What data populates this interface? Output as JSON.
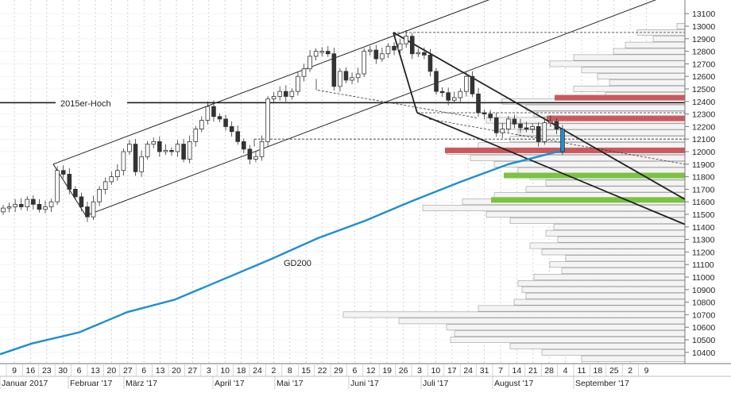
{
  "chart_data": {
    "type": "candlestick",
    "title": "",
    "y_ticks": [
      10400,
      10500,
      10600,
      10700,
      10800,
      10900,
      11000,
      11100,
      11200,
      11300,
      11400,
      11500,
      11600,
      11700,
      11800,
      11900,
      12000,
      12100,
      12200,
      12300,
      12400,
      12500,
      12600,
      12700,
      12800,
      12900,
      13000,
      13100
    ],
    "ylim": [
      10300,
      13150
    ],
    "x_day_ticks": [
      "9",
      "16",
      "23",
      "30",
      "6",
      "13",
      "20",
      "27",
      "6",
      "13",
      "20",
      "27",
      "3",
      "10",
      "18",
      "24",
      "2",
      "8",
      "15",
      "22",
      "29",
      "6",
      "12",
      "19",
      "26",
      "3",
      "10",
      "17",
      "24",
      "31",
      "7",
      "14",
      "21",
      "28",
      "4",
      "11",
      "18",
      "25",
      "2",
      "9"
    ],
    "month_labels": [
      "Januar 2017",
      "Februar '17",
      "März '17",
      "April '17",
      "Mai '17",
      "Juni '17",
      "Juli '17",
      "August '17",
      "September '17"
    ],
    "annotations": {
      "resistance_2015": "2015er-Hoch",
      "gd200": "GD200"
    },
    "levels": {
      "hline_2015": 12390,
      "june_high": 12950,
      "dashed_12100": 12100,
      "dashed_12310": 12310,
      "dashed_12070": 12070,
      "red_zones": [
        12430,
        12265,
        12010
      ],
      "green_zones": [
        11810,
        11615
      ]
    },
    "gd200": [
      [
        0,
        10385
      ],
      [
        40,
        10470
      ],
      [
        100,
        10560
      ],
      [
        160,
        10720
      ],
      [
        220,
        10820
      ],
      [
        280,
        10980
      ],
      [
        340,
        11140
      ],
      [
        400,
        11310
      ],
      [
        460,
        11450
      ],
      [
        520,
        11610
      ],
      [
        580,
        11760
      ],
      [
        640,
        11900
      ],
      [
        708,
        12010
      ]
    ],
    "up_channel": {
      "lower": [
        [
          108,
          11490
        ],
        [
          640,
          12960
        ]
      ],
      "upper": [
        [
          67,
          11900
        ],
        [
          620,
          13500
        ]
      ]
    },
    "down_channel": {
      "upper": [
        [
          495,
          12950
        ],
        [
          862,
          11620
        ]
      ],
      "lower": [
        [
          525,
          12310
        ],
        [
          862,
          11420
        ]
      ]
    },
    "volume_profile_units": "relative",
    "closes": [
      11550,
      11560,
      11580,
      11560,
      11620,
      11580,
      11540,
      11560,
      11600,
      11850,
      11820,
      11700,
      11640,
      11560,
      11480,
      11600,
      11700,
      11760,
      11800,
      11850,
      12000,
      12060,
      11840,
      11960,
      12060,
      12080,
      12000,
      12010,
      12000,
      12060,
      11940,
      12080,
      12180,
      12250,
      12360,
      12280,
      12260,
      12200,
      12160,
      12080,
      12020,
      11940,
      11960,
      12080,
      12420,
      12440,
      12480,
      12440,
      12480,
      12600,
      12660,
      12760,
      12800,
      12800,
      12780,
      12520,
      12640,
      12570,
      12590,
      12620,
      12800,
      12810,
      12740,
      12780,
      12840,
      12810,
      12860,
      12920,
      12780,
      12790,
      12770,
      12640,
      12480,
      12470,
      12410,
      12430,
      12480,
      12600,
      12460,
      12310,
      12300,
      12270,
      12150,
      12180,
      12260,
      12220,
      12190,
      12180,
      12200,
      12080,
      12230,
      12240,
      12180,
      12000
    ]
  }
}
